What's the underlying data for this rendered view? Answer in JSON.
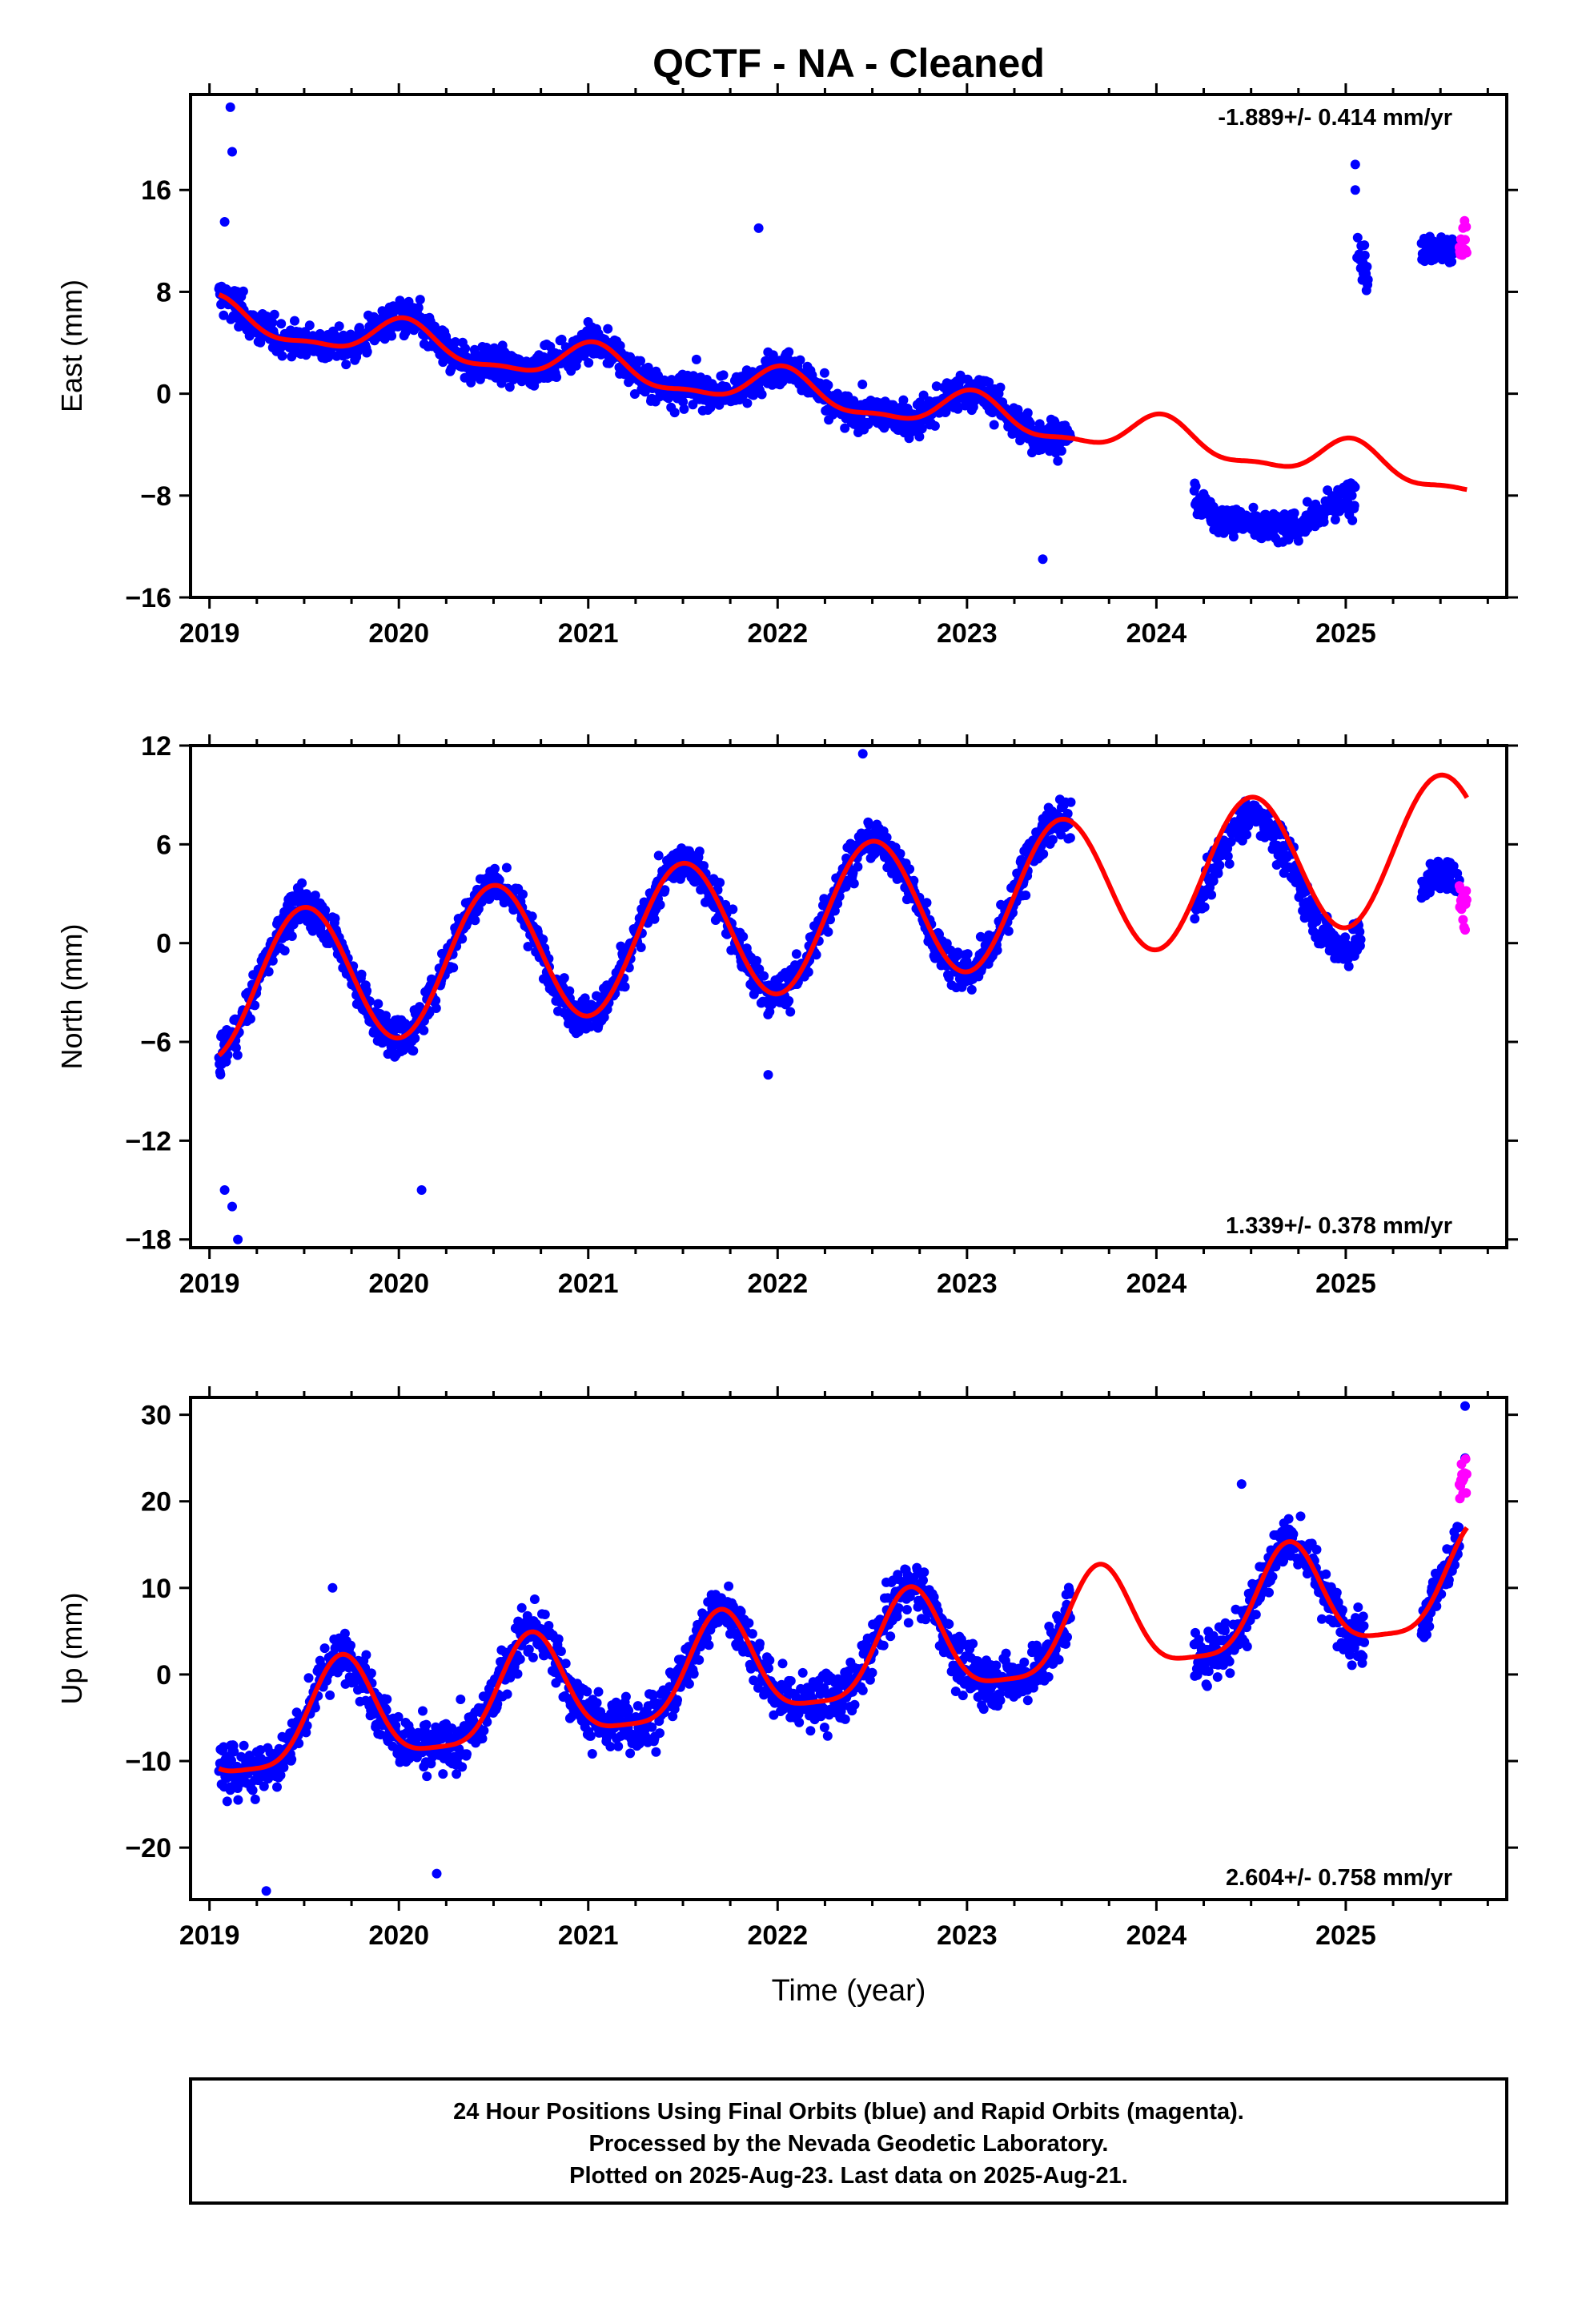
{
  "title": "QCTF  - NA - Cleaned",
  "xlabel": "Time (year)",
  "colors": {
    "final": "#0000ff",
    "rapid": "#ff00ff",
    "fit": "#ff0000",
    "frame": "#000000"
  },
  "footer": {
    "line1": "24 Hour Positions Using Final Orbits (blue) and Rapid Orbits (magenta).",
    "line2": "Processed by the Nevada Geodetic Laboratory.",
    "line3": "Plotted on 2025-Aug-23. Last data on 2025-Aug-21."
  },
  "chart_data": [
    {
      "type": "scatter",
      "name": "east",
      "ylabel": "East (mm)",
      "rate_label": "-1.889+/- 0.414 mm/yr",
      "rate_position": "top-right",
      "xlim": [
        2018.9,
        2025.85
      ],
      "ylim": [
        -16,
        23.5
      ],
      "xticks": [
        2019,
        2020,
        2021,
        2022,
        2023,
        2024,
        2025
      ],
      "xtick_labels": [
        "2019",
        "2020",
        "2021",
        "2022",
        "2023",
        "2024",
        "2025"
      ],
      "yticks": [
        -16,
        -8,
        0,
        8,
        16
      ],
      "ytick_labels": [
        "−16",
        "−8",
        "0",
        "8",
        "16"
      ],
      "model": {
        "intercept": 6.0,
        "slope": -1.889,
        "annual_amp": 1.4,
        "annual_phase_peak": 0.03,
        "semi_amp": 0.5
      },
      "segments": [
        {
          "start": 2019.05,
          "end": 2023.55,
          "offset": 0.0,
          "scatter": 1.8
        },
        {
          "start": 2024.2,
          "end": 2025.05,
          "offset": -4.8,
          "scatter": 1.6
        },
        {
          "start": 2025.06,
          "end": 2025.12,
          "offset": 14.0,
          "scatter": 3.0
        },
        {
          "start": 2025.4,
          "end": 2025.6,
          "offset": 18.5,
          "scatter": 1.3
        }
      ],
      "rapid": {
        "start": 2025.6,
        "end": 2025.64,
        "offset": 19.0,
        "scatter": 2.0
      },
      "outliers": [
        [
          2019.11,
          22.5
        ],
        [
          2019.12,
          19.0
        ],
        [
          2019.08,
          13.5
        ],
        [
          2021.9,
          13.0
        ],
        [
          2025.05,
          18.0
        ],
        [
          2025.05,
          16.0
        ],
        [
          2023.4,
          -13.0
        ]
      ]
    },
    {
      "type": "scatter",
      "name": "north",
      "ylabel": "North (mm)",
      "rate_label": "1.339+/- 0.378 mm/yr",
      "rate_position": "bottom-right",
      "xlim": [
        2018.9,
        2025.85
      ],
      "ylim": [
        -18.5,
        12
      ],
      "xticks": [
        2019,
        2020,
        2021,
        2022,
        2023,
        2024,
        2025
      ],
      "xtick_labels": [
        "2019",
        "2020",
        "2021",
        "2022",
        "2023",
        "2024",
        "2025"
      ],
      "yticks": [
        -18,
        -12,
        -6,
        0,
        6,
        12
      ],
      "ytick_labels": [
        "−18",
        "−12",
        "−6",
        "0",
        "6",
        "12"
      ],
      "model": {
        "intercept": -2.8,
        "slope": 1.339,
        "annual_amp": 4.3,
        "annual_phase_peak": 0.5,
        "semi_amp": 0.0
      },
      "segments": [
        {
          "start": 2019.05,
          "end": 2023.55,
          "offset": 0.0,
          "scatter": 1.6
        },
        {
          "start": 2024.2,
          "end": 2025.08,
          "offset": -1.2,
          "scatter": 1.6
        },
        {
          "start": 2025.4,
          "end": 2025.6,
          "offset": -6.0,
          "scatter": 1.2
        }
      ],
      "rapid": {
        "start": 2025.6,
        "end": 2025.64,
        "offset": -6.5,
        "scatter": 2.0
      },
      "outliers": [
        [
          2019.15,
          -18.0
        ],
        [
          2019.12,
          -16.0
        ],
        [
          2019.08,
          -15.0
        ],
        [
          2020.12,
          -15.0
        ],
        [
          2022.45,
          11.5
        ],
        [
          2021.95,
          -8.0
        ]
      ]
    },
    {
      "type": "scatter",
      "name": "up",
      "ylabel": "Up (mm)",
      "rate_label": "2.604+/- 0.758 mm/yr",
      "rate_position": "bottom-right",
      "xlim": [
        2018.9,
        2025.85
      ],
      "ylim": [
        -26,
        32
      ],
      "xticks": [
        2019,
        2020,
        2021,
        2022,
        2023,
        2024,
        2025
      ],
      "xtick_labels": [
        "2019",
        "2020",
        "2021",
        "2022",
        "2023",
        "2024",
        "2025"
      ],
      "yticks": [
        -20,
        -10,
        0,
        10,
        20,
        30
      ],
      "ytick_labels": [
        "−20",
        "−10",
        "0",
        "10",
        "20",
        "30"
      ],
      "model": {
        "intercept": -7.0,
        "slope": 2.604,
        "annual_amp": 6.0,
        "annual_phase_peak": 0.7,
        "semi_amp": 1.5
      },
      "segments": [
        {
          "start": 2019.05,
          "end": 2023.55,
          "offset": 0.0,
          "scatter": 4.0
        },
        {
          "start": 2024.2,
          "end": 2025.1,
          "offset": 0.0,
          "scatter": 4.2
        },
        {
          "start": 2025.4,
          "end": 2025.6,
          "offset": 0.0,
          "scatter": 3.5
        }
      ],
      "rapid": {
        "start": 2025.6,
        "end": 2025.64,
        "offset": 6.0,
        "scatter": 7.0
      },
      "outliers": [
        [
          2019.3,
          -25.0
        ],
        [
          2020.2,
          -23.0
        ],
        [
          2024.45,
          22.0
        ],
        [
          2025.63,
          31.0
        ],
        [
          2025.63,
          25.0
        ],
        [
          2019.65,
          10.0
        ]
      ]
    }
  ]
}
